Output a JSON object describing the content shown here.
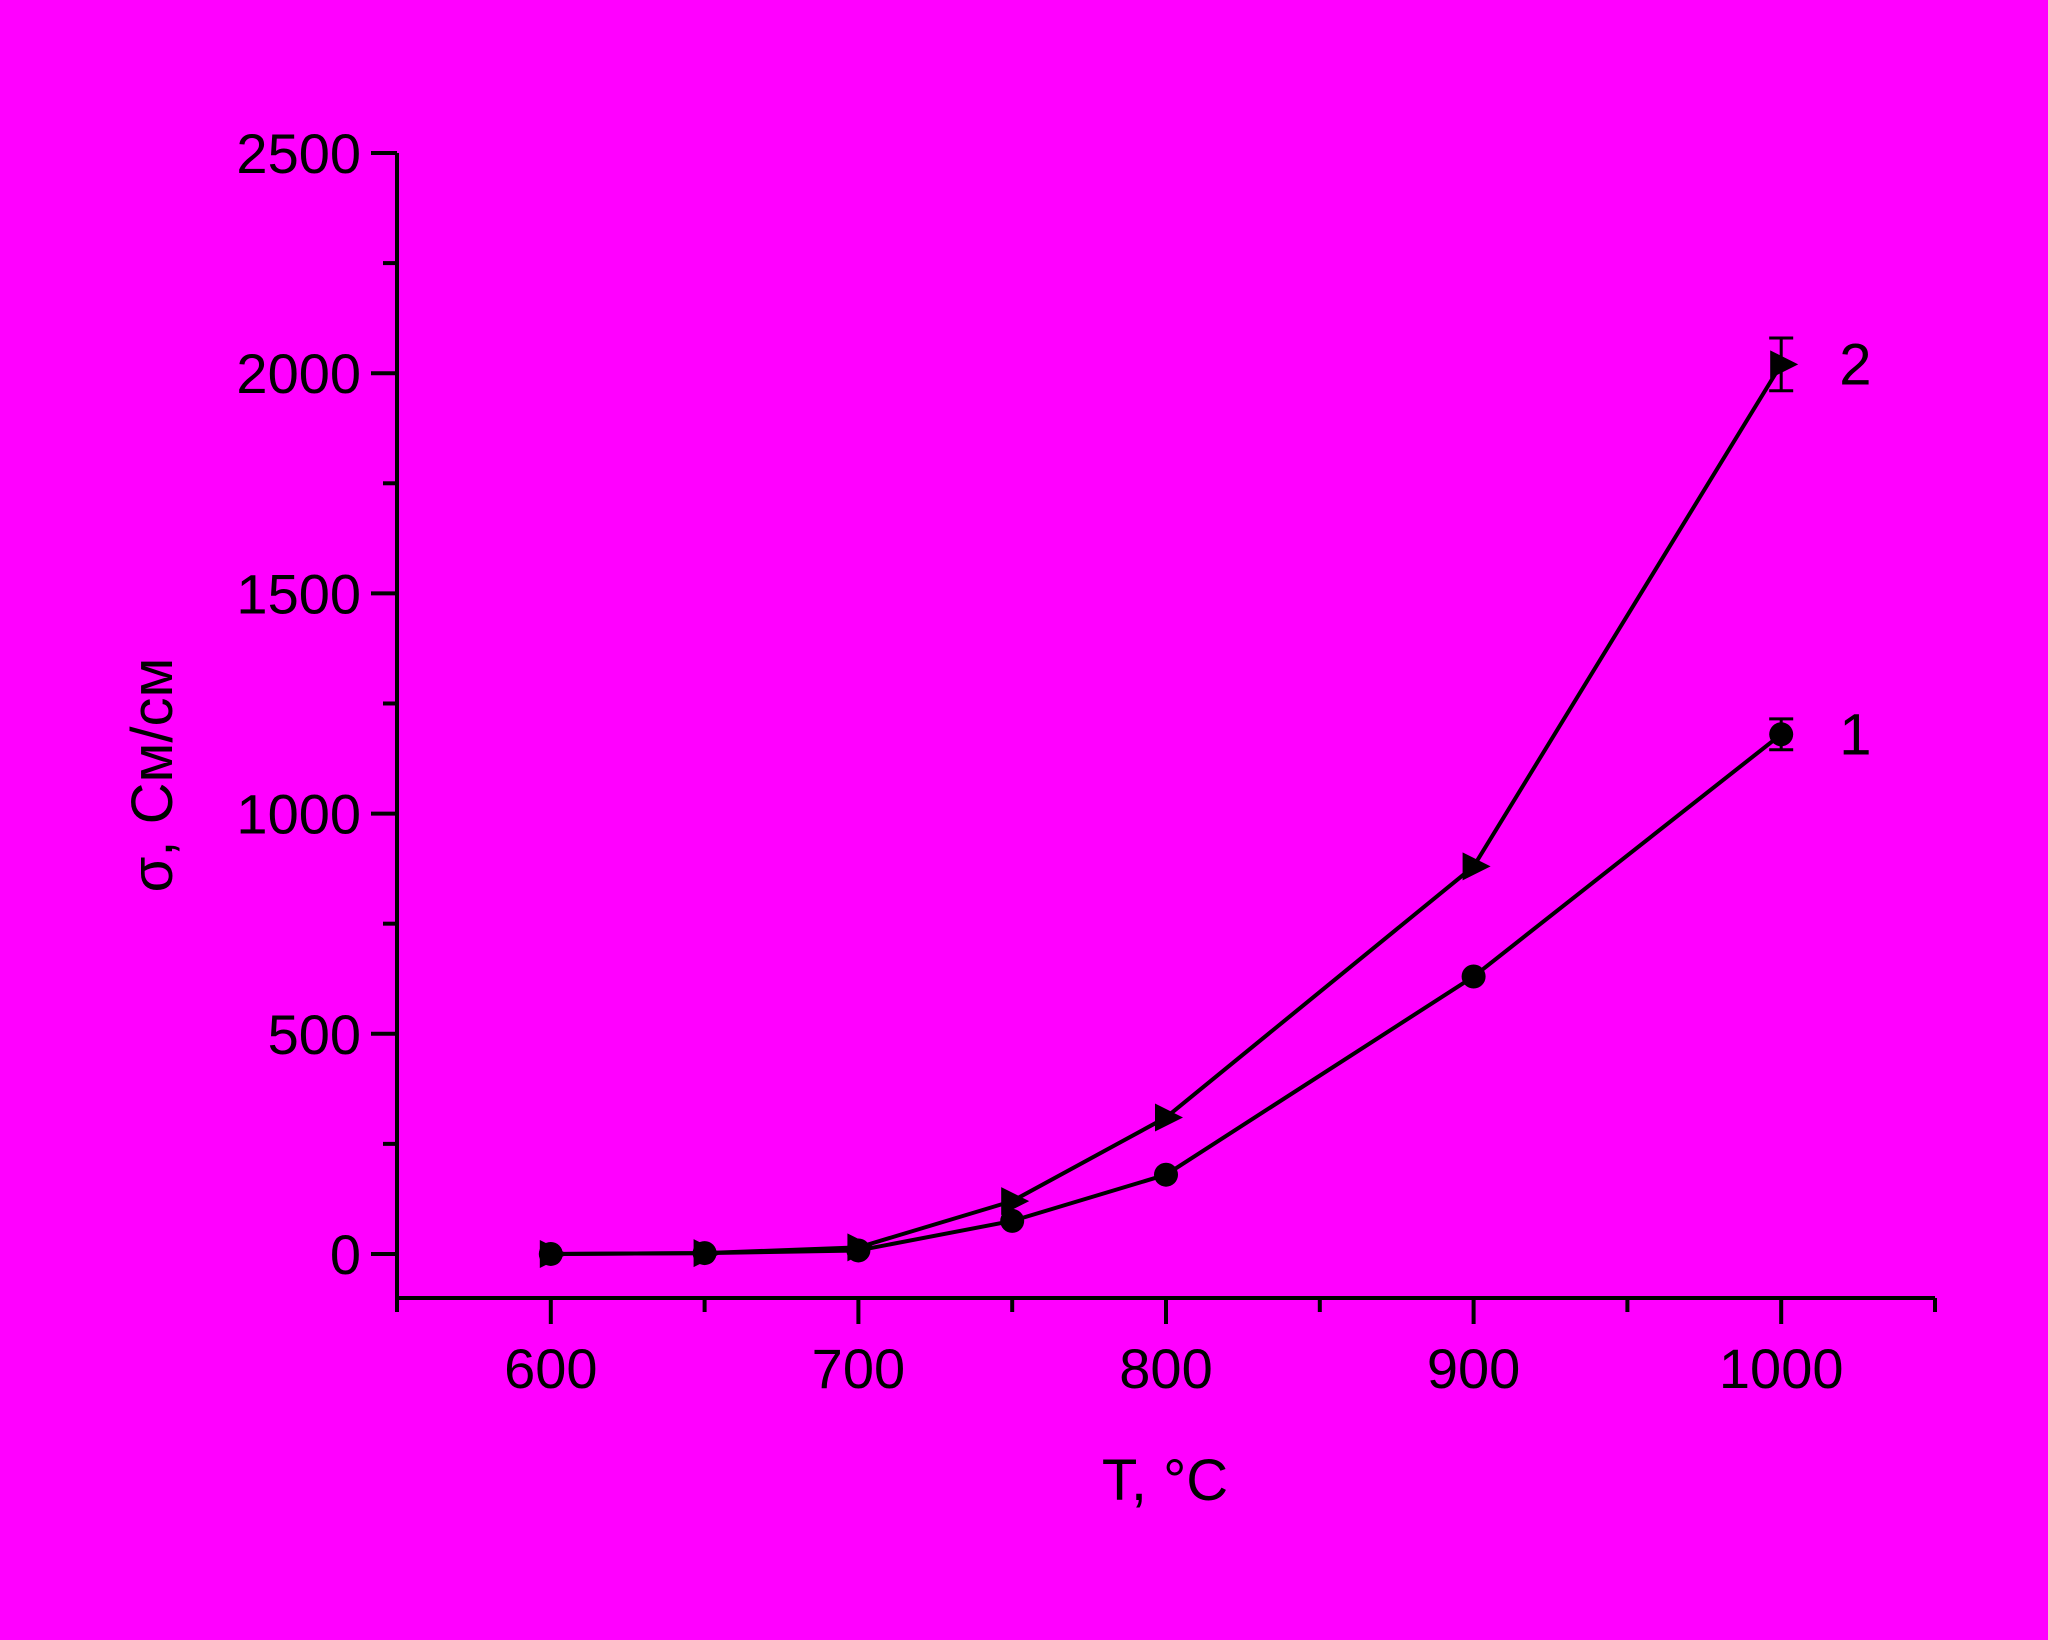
{
  "colors": {
    "background": "#FF00FF",
    "ink": "#000000"
  },
  "chart_data": {
    "type": "line",
    "title": "",
    "xlabel": "T, °C",
    "ylabel": "σ, См/см",
    "xlim": [
      550,
      1050
    ],
    "ylim": [
      -100,
      2500
    ],
    "x_ticks": [
      600,
      700,
      800,
      900,
      1000
    ],
    "y_ticks": [
      0,
      500,
      1000,
      1500,
      2000,
      2500
    ],
    "grid": false,
    "series": [
      {
        "name": "1",
        "marker": "circle",
        "x": [
          600,
          650,
          700,
          750,
          800,
          900,
          1000
        ],
        "y": [
          0,
          2,
          8,
          75,
          180,
          630,
          1180
        ],
        "error": [
          0,
          0,
          0,
          0,
          0,
          0,
          35
        ]
      },
      {
        "name": "2",
        "marker": "triangle-right",
        "x": [
          600,
          650,
          700,
          750,
          800,
          900,
          1000
        ],
        "y": [
          0,
          2,
          15,
          120,
          310,
          880,
          2020
        ],
        "error": [
          0,
          0,
          0,
          0,
          0,
          0,
          60
        ]
      }
    ]
  }
}
